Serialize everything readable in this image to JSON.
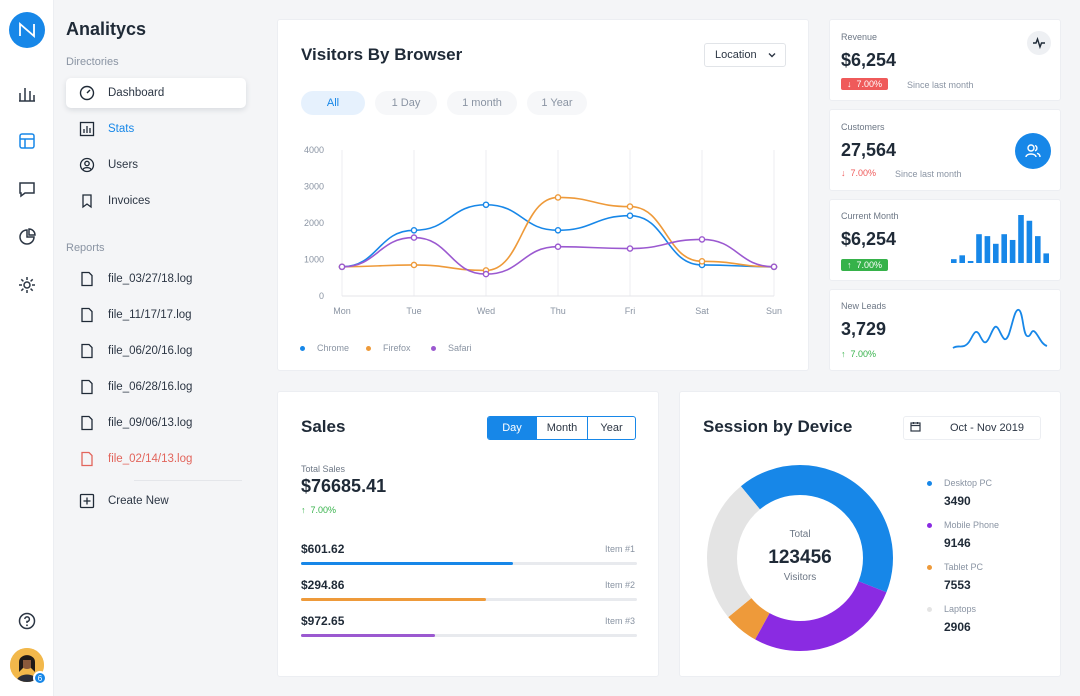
{
  "app": {
    "title": "Analitycs"
  },
  "rail": {
    "icons": [
      "chart-bar-icon",
      "layout-icon",
      "message-icon",
      "pie-chart-icon",
      "settings-icon",
      "help-icon"
    ],
    "avatar_badge": "6"
  },
  "directories": {
    "label": "Directories",
    "items": [
      {
        "label": "Dashboard",
        "icon": "dashboard-icon"
      },
      {
        "label": "Stats",
        "icon": "stats-icon"
      },
      {
        "label": "Users",
        "icon": "user-icon"
      },
      {
        "label": "Invoices",
        "icon": "bookmark-icon"
      }
    ]
  },
  "reports": {
    "label": "Reports",
    "files": [
      "file_03/27/18.log",
      "file_11/17/17.log",
      "file_06/20/16.log",
      "file_06/28/16.log",
      "file_09/06/13.log",
      "file_02/14/13.log"
    ],
    "create_new": "Create New"
  },
  "visitors": {
    "title": "Visitors By Browser",
    "location_select": "Location",
    "filters": [
      "All",
      "1 Day",
      "1 month",
      "1 Year"
    ],
    "active_filter": "All"
  },
  "chart_data": {
    "type": "line",
    "x": [
      "Mon",
      "Tue",
      "Wed",
      "Thu",
      "Fri",
      "Sat",
      "Sun"
    ],
    "ylim": [
      0,
      4000
    ],
    "yticks": [
      "4000",
      "3000",
      "2000",
      "1000",
      "0"
    ],
    "series": [
      {
        "name": "Chrome",
        "color": "#1787e8",
        "values": [
          800,
          1800,
          2500,
          1800,
          2200,
          850,
          800
        ]
      },
      {
        "name": "Firefox",
        "color": "#ee9a3a",
        "values": [
          800,
          850,
          700,
          2700,
          2450,
          950,
          800
        ]
      },
      {
        "name": "Safari",
        "color": "#9b59d0",
        "values": [
          800,
          1600,
          600,
          1350,
          1300,
          1550,
          800
        ]
      }
    ]
  },
  "stats": {
    "revenue": {
      "label": "Revenue",
      "value": "$6,254",
      "change": "7.00%",
      "since": "Since last month"
    },
    "customers": {
      "label": "Customers",
      "value": "27,564",
      "change": "7.00%",
      "since": "Since last month"
    },
    "current_month": {
      "label": "Current Month",
      "value": "$6,254",
      "change": "7.00%",
      "bars": [
        2,
        4,
        1,
        15,
        14,
        10,
        15,
        12,
        25,
        22,
        14,
        5
      ]
    },
    "new_leads": {
      "label": "New Leads",
      "value": "3,729",
      "change": "7.00%"
    }
  },
  "sales": {
    "title": "Sales",
    "tabs": [
      "Day",
      "Month",
      "Year"
    ],
    "active_tab": "Day",
    "total_label": "Total Sales",
    "total_value": "$76685.41",
    "change": "7.00%",
    "items": [
      {
        "amount": "$601.62",
        "label": "Item #1",
        "progress": 0.63,
        "color": "#1787e8"
      },
      {
        "amount": "$294.86",
        "label": "Item #2",
        "progress": 0.55,
        "color": "#ee9a3a"
      },
      {
        "amount": "$972.65",
        "label": "Item #3",
        "progress": 0.4,
        "color": "#9b59d0"
      }
    ]
  },
  "devices": {
    "title": "Session by Device",
    "date_range": "Oct - Nov 2019",
    "center_label": "Total",
    "center_value": "123456",
    "center_sub": "Visitors",
    "items": [
      {
        "label": "Desktop PC",
        "value": "3490",
        "color": "#1787e8"
      },
      {
        "label": "Mobile Phone",
        "value": "9146",
        "color": "#8a2be2"
      },
      {
        "label": "Tablet PC",
        "value": "7553",
        "color": "#ee9a3a"
      },
      {
        "label": "Laptops",
        "value": "2906",
        "color": "#e4e4e4"
      }
    ],
    "donut_shares": [
      0.42,
      0.27,
      0.06,
      0.25
    ]
  }
}
